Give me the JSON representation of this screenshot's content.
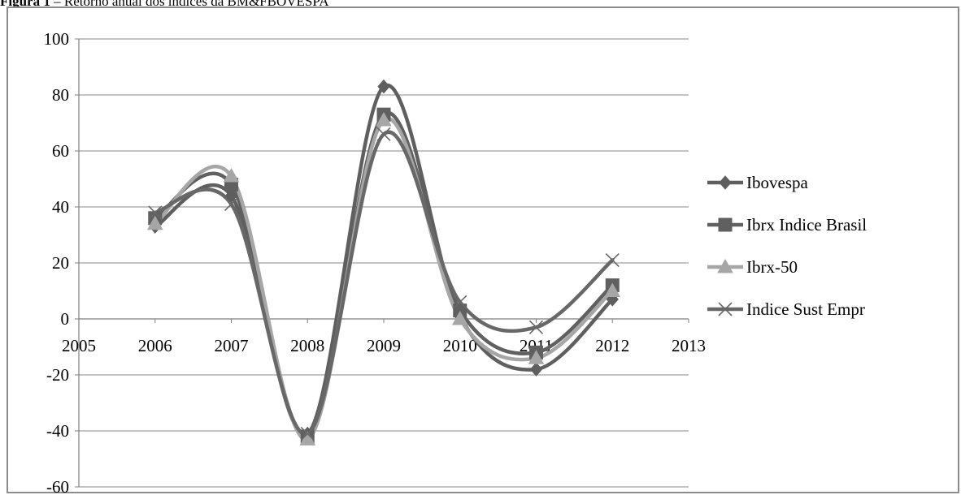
{
  "caption": {
    "prefix": "Figura 1",
    "text": " – Retorno anual dos índices da BM&FBOVESPA"
  },
  "chart_data": {
    "type": "line",
    "smooth": true,
    "title": "",
    "xlabel": "",
    "ylabel": "",
    "xlim": [
      2005,
      2013
    ],
    "ylim": [
      -60,
      100
    ],
    "x_ticks": [
      2005,
      2006,
      2007,
      2008,
      2009,
      2010,
      2011,
      2012,
      2013
    ],
    "y_ticks": [
      -60,
      -40,
      -20,
      0,
      20,
      40,
      60,
      80,
      100
    ],
    "grid": "horizontal",
    "legend_position": "right",
    "x": [
      2006,
      2007,
      2008,
      2009,
      2010,
      2011,
      2012
    ],
    "series": [
      {
        "name": "Ibovespa",
        "marker": "diamond",
        "color": "#5f5f5f",
        "values": [
          33,
          44,
          -41,
          83,
          1,
          -18,
          7
        ]
      },
      {
        "name": "Ibrx Indice Brasil",
        "marker": "square",
        "color": "#606060",
        "values": [
          36,
          48,
          -42,
          73,
          3,
          -12,
          12
        ]
      },
      {
        "name": "Ibrx-50",
        "marker": "triangle",
        "color": "#a6a6a6",
        "values": [
          34,
          51,
          -43,
          71,
          0,
          -14,
          10
        ]
      },
      {
        "name": "Indice Sust Empr",
        "marker": "x",
        "color": "#686868",
        "values": [
          38,
          41,
          -41,
          66,
          6,
          -3,
          21
        ]
      }
    ]
  }
}
